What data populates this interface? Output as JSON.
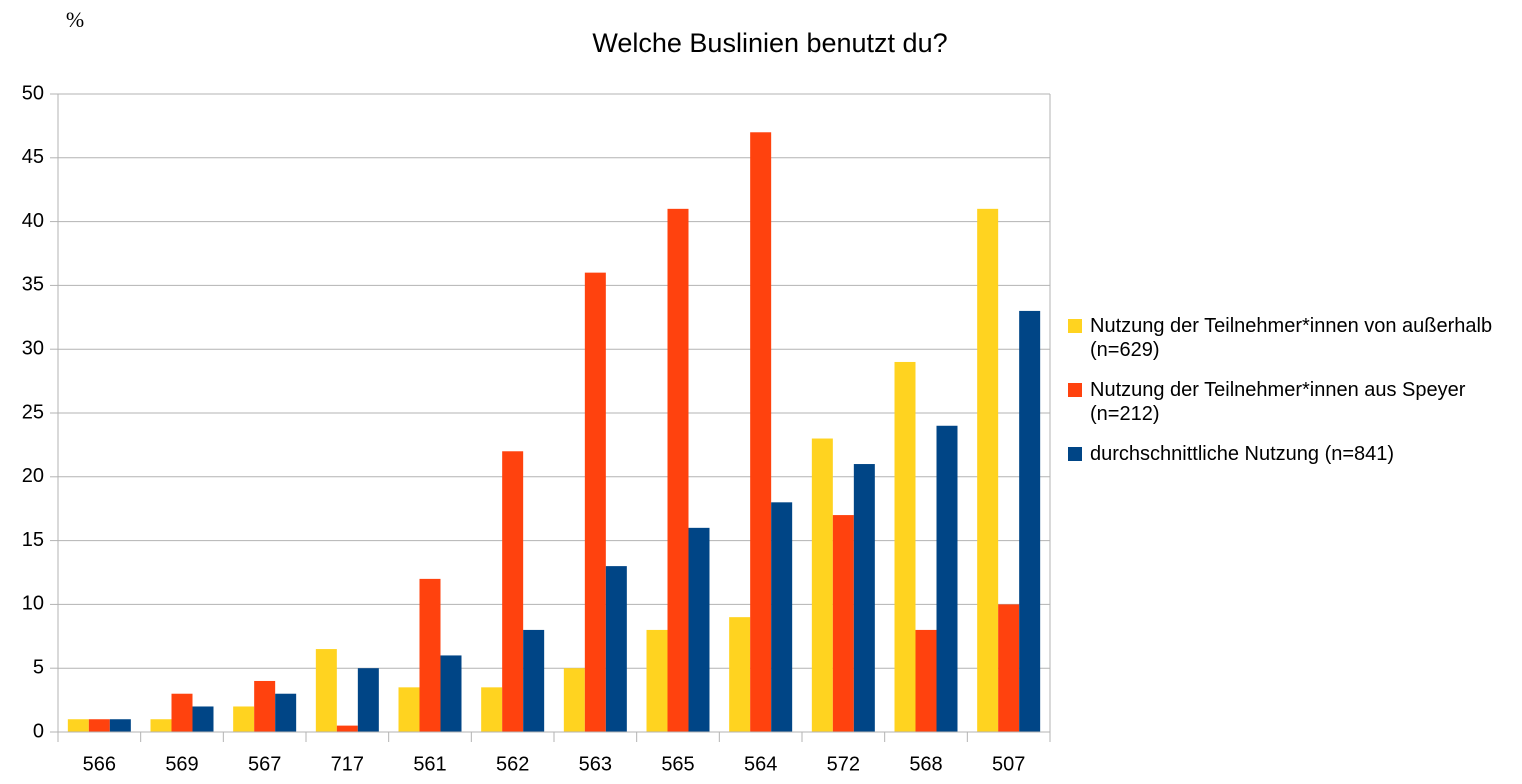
{
  "chart_data": {
    "type": "bar",
    "title": "Welche Buslinien benutzt du?",
    "y_label": "%",
    "categories": [
      "566",
      "569",
      "567",
      "717",
      "561",
      "562",
      "563",
      "565",
      "564",
      "572",
      "568",
      "507"
    ],
    "series": [
      {
        "name": "Nutzung der Teilnehmer*innen von außerhalb (n=629)",
        "color": "#ffd320",
        "values": [
          1,
          1,
          2,
          6.5,
          3.5,
          3.5,
          5,
          8,
          9,
          23,
          29,
          41
        ]
      },
      {
        "name": "Nutzung der Teilnehmer*innen aus Speyer (n=212)",
        "color": "#ff420e",
        "values": [
          1,
          3,
          4,
          0.5,
          12,
          22,
          36,
          41,
          47,
          17,
          8,
          10
        ]
      },
      {
        "name": "durchschnittliche Nutzung (n=841)",
        "color": "#004586",
        "values": [
          1,
          2,
          3,
          5,
          6,
          8,
          13,
          16,
          18,
          21,
          24,
          33
        ]
      }
    ],
    "ylim": [
      0,
      50
    ],
    "yticks": [
      0,
      5,
      10,
      15,
      20,
      25,
      30,
      35,
      40,
      45,
      50
    ],
    "grid": true,
    "legend": "right"
  }
}
